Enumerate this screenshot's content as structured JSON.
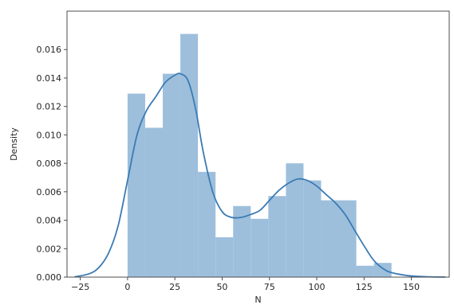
{
  "chart_data": {
    "type": "bar",
    "title": "",
    "xlabel": "N",
    "ylabel": "Density",
    "xlim": [
      -32,
      170
    ],
    "ylim": [
      0,
      0.0187
    ],
    "x_ticks": [
      -25,
      0,
      25,
      50,
      75,
      100,
      125,
      150
    ],
    "x_tick_labels": [
      "−25",
      "0",
      "25",
      "50",
      "75",
      "100",
      "125",
      "150"
    ],
    "y_ticks": [
      0,
      0.002,
      0.004,
      0.006,
      0.008,
      0.01,
      0.012,
      0.014,
      0.016
    ],
    "y_tick_labels": [
      "0.000",
      "0.002",
      "0.004",
      "0.006",
      "0.008",
      "0.010",
      "0.012",
      "0.014",
      "0.016"
    ],
    "grid": false,
    "histogram": {
      "bin_edges": [
        0,
        9.3,
        18.6,
        27.9,
        37.2,
        46.5,
        55.8,
        65.1,
        74.4,
        83.7,
        93.0,
        102.3,
        111.6,
        120.9,
        130.2,
        139.5
      ],
      "values": [
        0.0129,
        0.0105,
        0.0143,
        0.0171,
        0.0074,
        0.0028,
        0.005,
        0.0041,
        0.0057,
        0.008,
        0.0068,
        0.0054,
        0.0054,
        0.0008,
        0.001
      ],
      "color": "#9dbfdc"
    },
    "kde": {
      "x": [
        -28,
        -20,
        -15,
        -10,
        -5,
        0,
        5,
        10,
        15,
        20,
        25,
        28,
        32,
        36,
        40,
        45,
        50,
        55,
        60,
        65,
        70,
        75,
        80,
        85,
        90,
        95,
        100,
        105,
        110,
        115,
        120,
        125,
        130,
        135,
        140,
        150,
        160,
        168
      ],
      "y": [
        2e-05,
        0.00025,
        0.0007,
        0.0017,
        0.0036,
        0.0068,
        0.01,
        0.0117,
        0.0127,
        0.0137,
        0.0142,
        0.0143,
        0.0138,
        0.0118,
        0.0088,
        0.006,
        0.0046,
        0.0042,
        0.0042,
        0.0044,
        0.0047,
        0.0054,
        0.0061,
        0.0066,
        0.0069,
        0.0068,
        0.0064,
        0.0058,
        0.0052,
        0.0044,
        0.0033,
        0.0022,
        0.0012,
        0.0006,
        0.0003,
        8e-05,
        2e-05,
        5e-06
      ],
      "color": "#3b7bb3"
    }
  }
}
